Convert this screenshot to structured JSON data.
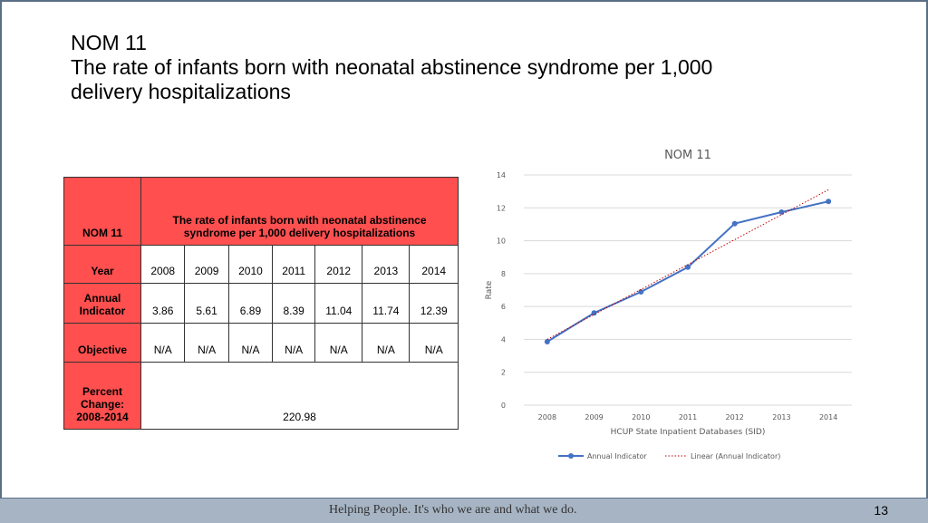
{
  "title": {
    "line1": "NOM 11",
    "line2": "The rate of infants born with neonatal abstinence syndrome per 1,000",
    "line3": "delivery hospitalizations"
  },
  "table": {
    "corner": "NOM 11",
    "header": "The rate of infants born with neonatal abstinence syndrome per 1,000 delivery hospitalizations",
    "row_year": "Year",
    "years": [
      "2008",
      "2009",
      "2010",
      "2011",
      "2012",
      "2013",
      "2014"
    ],
    "row_annual": "Annual Indicator",
    "annual": [
      "3.86",
      "5.61",
      "6.89",
      "8.39",
      "11.04",
      "11.74",
      "12.39"
    ],
    "row_objective": "Objective",
    "objective": [
      "N/A",
      "N/A",
      "N/A",
      "N/A",
      "N/A",
      "N/A",
      "N/A"
    ],
    "row_percent": "Percent Change: 2008-2014",
    "percent": "220.98"
  },
  "chart_data": {
    "type": "line",
    "title": "NOM 11",
    "xlabel": "HCUP State Inpatient Databases (SID)",
    "ylabel": "Rate",
    "ylim": [
      0,
      14
    ],
    "yticks": [
      "0",
      "2",
      "4",
      "6",
      "8",
      "10",
      "12",
      "14"
    ],
    "categories": [
      "2008",
      "2009",
      "2010",
      "2011",
      "2012",
      "2013",
      "2014"
    ],
    "series": [
      {
        "name": "Annual Indicator",
        "values": [
          3.86,
          5.61,
          6.89,
          8.39,
          11.04,
          11.74,
          12.39
        ],
        "color": "#4472c4"
      },
      {
        "name": "Linear (Annual Indicator)",
        "values": [
          4.0,
          5.5,
          7.0,
          8.5,
          10.0,
          11.5,
          13.1
        ],
        "color": "#c00000",
        "style": "dotted"
      }
    ],
    "grid": true,
    "legend": "bottom"
  },
  "footer": {
    "slogan": "Helping People.  It's who we are and what we do.",
    "page": "13"
  }
}
